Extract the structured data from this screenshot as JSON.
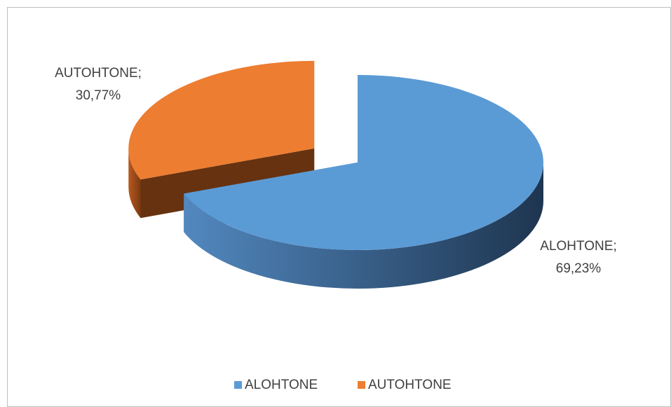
{
  "chart_data": {
    "type": "pie3d",
    "categories": [
      "ALOHTONE",
      "AUTOHTONE"
    ],
    "values": [
      69.23,
      30.77
    ],
    "value_labels": [
      "ALOHTONE; 69,23%",
      "AUTOHTONE; 30,77%"
    ],
    "colors": [
      "#5b9bd5",
      "#ed7d31"
    ],
    "legend": "bottom"
  }
}
